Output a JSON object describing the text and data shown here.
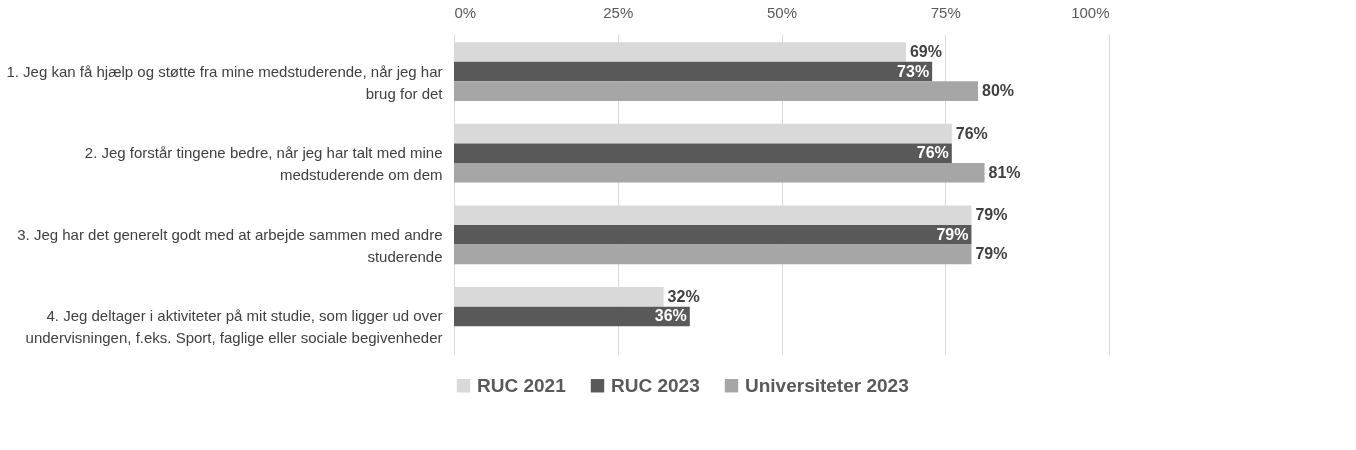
{
  "chart_data": {
    "type": "bar",
    "orientation": "horizontal",
    "categories": [
      "1. Jeg kan få hjælp og støtte fra mine medstuderende, når jeg har brug for det",
      "2. Jeg forstår tingene bedre, når jeg har talt med mine medstuderende om dem",
      "3. Jeg har det generelt godt med at arbejde sammen med andre studerende",
      "4. Jeg deltager i aktiviteter på mit studie, som ligger ud over undervisningen, f.eks. Sport, faglige eller sociale begivenheder"
    ],
    "series": [
      {
        "name": "RUC 2021",
        "color": "#d9d9d9",
        "values": [
          69,
          76,
          79,
          32
        ],
        "value_labels": [
          "69%",
          "76%",
          "79%",
          "32%"
        ]
      },
      {
        "name": "RUC 2023",
        "color": "#595959",
        "values": [
          73,
          76,
          79,
          36
        ],
        "value_labels": [
          "73%",
          "76%",
          "79%",
          "36%"
        ]
      },
      {
        "name": "Universiteter 2023",
        "color": "#a6a6a6",
        "values": [
          80,
          81,
          79,
          null
        ],
        "value_labels": [
          "80%",
          "81%",
          "79%",
          null
        ]
      }
    ],
    "xlim": [
      0,
      100
    ],
    "xticks": [
      {
        "value": 0,
        "label": "0%"
      },
      {
        "value": 25,
        "label": "25%"
      },
      {
        "value": 50,
        "label": "50%"
      },
      {
        "value": 75,
        "label": "75%"
      },
      {
        "value": 100,
        "label": "100%"
      }
    ],
    "grid": true,
    "legend": "bottom"
  }
}
